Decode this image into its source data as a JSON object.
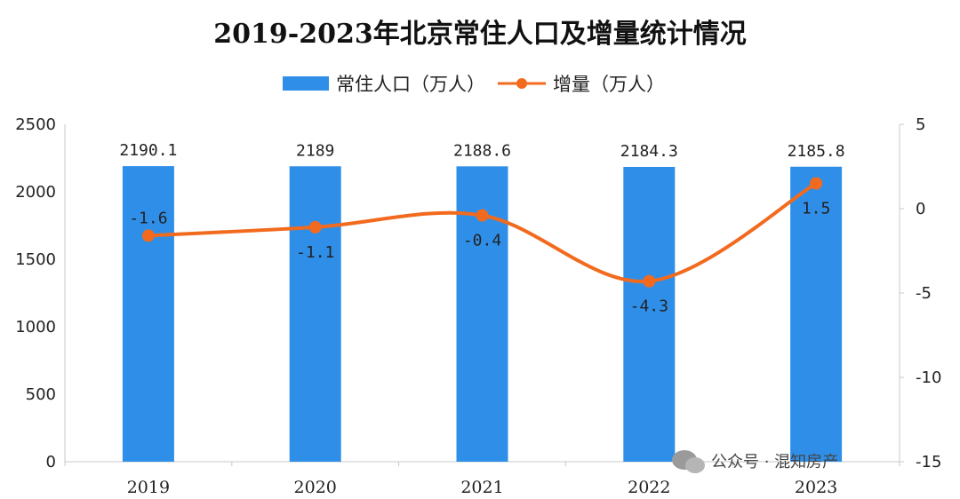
{
  "chart_data": {
    "type": "bar",
    "title": "2019-2023年北京常住人口及增量统计情况",
    "categories": [
      "2019",
      "2020",
      "2021",
      "2022",
      "2023"
    ],
    "series": [
      {
        "name": "常住人口（万人）",
        "kind": "bar",
        "axis": "left",
        "color": "#2f8fe8",
        "values": [
          2190.1,
          2189,
          2188.6,
          2184.3,
          2185.8
        ],
        "labels": [
          "2190.1",
          "2189",
          "2188.6",
          "2184.3",
          "2185.8"
        ]
      },
      {
        "name": "增量（万人）",
        "kind": "line",
        "axis": "right",
        "color": "#f26a1e",
        "values": [
          -1.6,
          -1.1,
          -0.4,
          -4.3,
          1.5
        ],
        "labels": [
          "-1.6",
          "-1.1",
          "-0.4",
          "-4.3",
          "1.5"
        ]
      }
    ],
    "y_left": {
      "ylim": [
        0,
        2500
      ],
      "ticks": [
        "0",
        "500",
        "1000",
        "1500",
        "2000",
        "2500"
      ]
    },
    "y_right": {
      "ylim": [
        -15,
        5
      ],
      "ticks": [
        "-15",
        "-10",
        "-5",
        "0",
        "5"
      ]
    },
    "grid": false,
    "legend_position": "top-center"
  },
  "watermark": {
    "text": "公众号 · 混知房产"
  }
}
